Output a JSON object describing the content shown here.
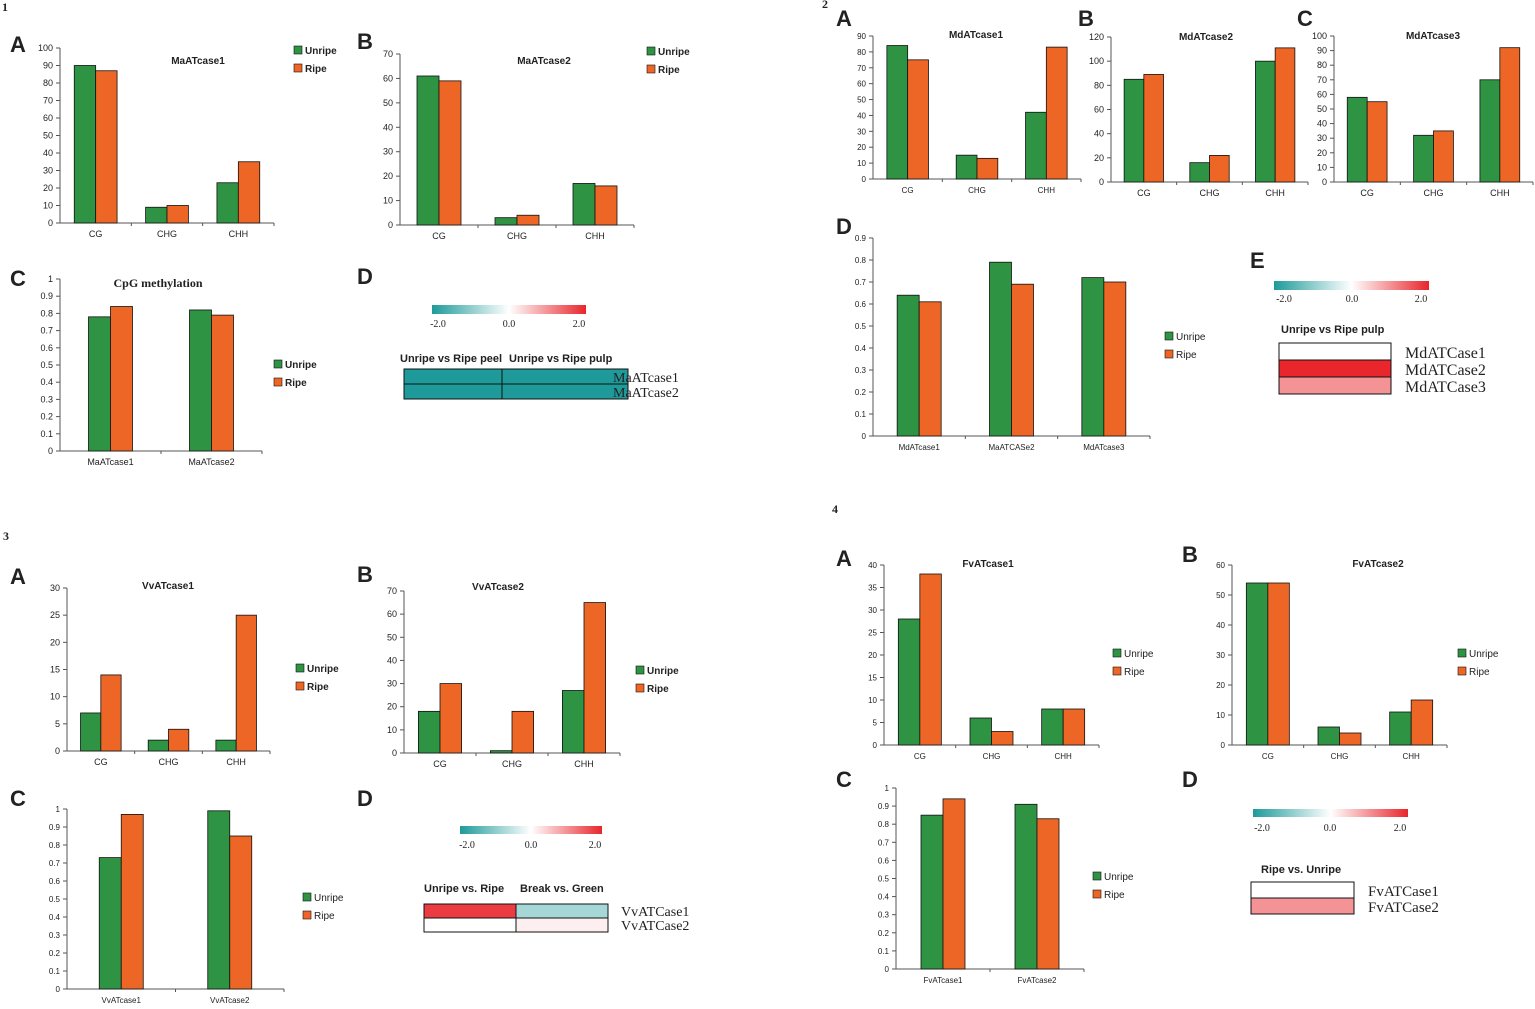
{
  "colors": {
    "unripe": "#2e9444",
    "ripe": "#ee6625",
    "teal": "#1e9a9a",
    "red": "#e8262c",
    "light_red": "#ef8486",
    "light_teal": "#a6dcdc",
    "pale": "#fdf0ec"
  },
  "series_names": [
    "Unripe",
    "Ripe"
  ],
  "figures": [
    {
      "number": "1",
      "panels": [
        {
          "label": "A",
          "chart": "c1A"
        },
        {
          "label": "B",
          "chart": "c1B"
        },
        {
          "label": "C",
          "chart": "c1C"
        },
        {
          "label": "D",
          "heatmap": "h1D"
        }
      ]
    },
    {
      "number": "2",
      "panels": [
        {
          "label": "A",
          "chart": "c2A"
        },
        {
          "label": "B",
          "chart": "c2B"
        },
        {
          "label": "C",
          "chart": "c2C"
        },
        {
          "label": "D",
          "chart": "c2D"
        },
        {
          "label": "E",
          "heatmap": "h2E"
        }
      ]
    },
    {
      "number": "3",
      "panels": [
        {
          "label": "A",
          "chart": "c3A"
        },
        {
          "label": "B",
          "chart": "c3B"
        },
        {
          "label": "C",
          "chart": "c3C"
        },
        {
          "label": "D",
          "heatmap": "h3D"
        }
      ]
    },
    {
      "number": "4",
      "panels": [
        {
          "label": "A",
          "chart": "c4A"
        },
        {
          "label": "B",
          "chart": "c4B"
        },
        {
          "label": "C",
          "chart": "c4C"
        },
        {
          "label": "D",
          "heatmap": "h4D"
        }
      ]
    }
  ],
  "chart_data": [
    {
      "id": "c1A",
      "type": "bar",
      "title": "MaATcase1",
      "categories": [
        "CG",
        "CHG",
        "CHH"
      ],
      "series": [
        {
          "name": "Unripe",
          "values": [
            90,
            9,
            23
          ]
        },
        {
          "name": "Ripe",
          "values": [
            87,
            10,
            35
          ]
        }
      ],
      "ylim": [
        0,
        100
      ],
      "yticks": [
        0,
        10,
        20,
        30,
        40,
        50,
        60,
        70,
        80,
        90,
        100
      ]
    },
    {
      "id": "c1B",
      "type": "bar",
      "title": "MaATcase2",
      "categories": [
        "CG",
        "CHG",
        "CHH"
      ],
      "series": [
        {
          "name": "Unripe",
          "values": [
            61,
            3,
            17
          ]
        },
        {
          "name": "Ripe",
          "values": [
            59,
            4,
            16
          ]
        }
      ],
      "ylim": [
        0,
        70
      ],
      "yticks": [
        0,
        10,
        20,
        30,
        40,
        50,
        60,
        70
      ]
    },
    {
      "id": "c1C",
      "type": "bar",
      "title": "CpG methylation",
      "categories": [
        "MaATcase1",
        "MaATcase2"
      ],
      "series": [
        {
          "name": "Unripe",
          "values": [
            0.78,
            0.82
          ]
        },
        {
          "name": "Ripe",
          "values": [
            0.84,
            0.79
          ]
        }
      ],
      "ylim": [
        0,
        1
      ],
      "yticks": [
        0,
        0.1,
        0.2,
        0.3,
        0.4,
        0.5,
        0.6,
        0.7,
        0.8,
        0.9,
        1
      ]
    },
    {
      "id": "c2A",
      "type": "bar",
      "title": "MdATcase1",
      "categories": [
        "CG",
        "CHG",
        "CHH"
      ],
      "series": [
        {
          "name": "Unripe",
          "values": [
            84,
            15,
            42
          ]
        },
        {
          "name": "Ripe",
          "values": [
            75,
            13,
            83
          ]
        }
      ],
      "ylim": [
        0,
        90
      ],
      "yticks": [
        0,
        10,
        20,
        30,
        40,
        50,
        60,
        70,
        80,
        90
      ]
    },
    {
      "id": "c2B",
      "type": "bar",
      "title": "MdATcase2",
      "categories": [
        "CG",
        "CHG",
        "CHH"
      ],
      "series": [
        {
          "name": "Unripe",
          "values": [
            85,
            16,
            100
          ]
        },
        {
          "name": "Ripe",
          "values": [
            89,
            22,
            111
          ]
        }
      ],
      "ylim": [
        0,
        120
      ],
      "yticks": [
        0,
        20,
        40,
        60,
        80,
        100,
        120
      ]
    },
    {
      "id": "c2C",
      "type": "bar",
      "title": "MdATcase3",
      "categories": [
        "CG",
        "CHG",
        "CHH"
      ],
      "series": [
        {
          "name": "Unripe",
          "values": [
            58,
            32,
            70
          ]
        },
        {
          "name": "Ripe",
          "values": [
            55,
            35,
            92
          ]
        }
      ],
      "ylim": [
        0,
        100
      ],
      "yticks": [
        0,
        10,
        20,
        30,
        40,
        50,
        60,
        70,
        80,
        90,
        100
      ]
    },
    {
      "id": "c2D",
      "type": "bar",
      "title": "",
      "categories": [
        "MdATcase1",
        "MaATCASe2",
        "MdATcase3"
      ],
      "series": [
        {
          "name": "Unripe",
          "values": [
            0.64,
            0.79,
            0.72
          ]
        },
        {
          "name": "Ripe",
          "values": [
            0.61,
            0.69,
            0.7
          ]
        }
      ],
      "ylim": [
        0,
        0.9
      ],
      "yticks": [
        0,
        0.1,
        0.2,
        0.3,
        0.4,
        0.5,
        0.6,
        0.7,
        0.8,
        0.9
      ]
    },
    {
      "id": "c3A",
      "type": "bar",
      "title": "VvATcase1",
      "categories": [
        "CG",
        "CHG",
        "CHH"
      ],
      "series": [
        {
          "name": "Unripe",
          "values": [
            7,
            2,
            2
          ]
        },
        {
          "name": "Ripe",
          "values": [
            14,
            4,
            25
          ]
        }
      ],
      "ylim": [
        0,
        30
      ],
      "yticks": [
        0,
        5,
        10,
        15,
        20,
        25,
        30
      ]
    },
    {
      "id": "c3B",
      "type": "bar",
      "title": "VvATcase2",
      "categories": [
        "CG",
        "CHG",
        "CHH"
      ],
      "series": [
        {
          "name": "Unripe",
          "values": [
            18,
            1,
            27
          ]
        },
        {
          "name": "Ripe",
          "values": [
            30,
            18,
            65
          ]
        }
      ],
      "ylim": [
        0,
        70
      ],
      "yticks": [
        0,
        10,
        20,
        30,
        40,
        50,
        60,
        70
      ]
    },
    {
      "id": "c3C",
      "type": "bar",
      "title": "",
      "categories": [
        "VvATcase1",
        "VvATcase2"
      ],
      "series": [
        {
          "name": "Unripe",
          "values": [
            0.73,
            0.99
          ]
        },
        {
          "name": "Ripe",
          "values": [
            0.97,
            0.85
          ]
        }
      ],
      "ylim": [
        0,
        1
      ],
      "yticks": [
        0,
        0.1,
        0.2,
        0.3,
        0.4,
        0.5,
        0.6,
        0.7,
        0.8,
        0.9,
        1
      ]
    },
    {
      "id": "c4A",
      "type": "bar",
      "title": "FvATcase1",
      "categories": [
        "CG",
        "CHG",
        "CHH"
      ],
      "series": [
        {
          "name": "Unripe",
          "values": [
            28,
            6,
            8
          ]
        },
        {
          "name": "Ripe",
          "values": [
            38,
            3,
            8
          ]
        }
      ],
      "ylim": [
        0,
        40
      ],
      "yticks": [
        0,
        5,
        10,
        15,
        20,
        25,
        30,
        35,
        40
      ]
    },
    {
      "id": "c4B",
      "type": "bar",
      "title": "FvATcase2",
      "categories": [
        "CG",
        "CHG",
        "CHH"
      ],
      "series": [
        {
          "name": "Unripe",
          "values": [
            54,
            6,
            11
          ]
        },
        {
          "name": "Ripe",
          "values": [
            54,
            4,
            15
          ]
        }
      ],
      "ylim": [
        0,
        60
      ],
      "yticks": [
        0,
        10,
        20,
        30,
        40,
        50,
        60
      ]
    },
    {
      "id": "c4C",
      "type": "bar",
      "title": "",
      "categories": [
        "FvATcase1",
        "FvATcase2"
      ],
      "series": [
        {
          "name": "Unripe",
          "values": [
            0.85,
            0.91
          ]
        },
        {
          "name": "Ripe",
          "values": [
            0.94,
            0.83
          ]
        }
      ],
      "ylim": [
        0,
        1
      ],
      "yticks": [
        0,
        0.1,
        0.2,
        0.3,
        0.4,
        0.5,
        0.6,
        0.7,
        0.8,
        0.9,
        1
      ]
    },
    {
      "id": "h1D",
      "type": "heatmap",
      "scale_labels": [
        "-2.0",
        "0.0",
        "2.0"
      ],
      "columns": [
        "Unripe vs Ripe peel",
        "Unripe vs Ripe pulp"
      ],
      "rows": [
        "MaATcase1",
        "MaATcase2"
      ],
      "values": [
        [
          -2,
          -2
        ],
        [
          -2,
          -2
        ]
      ]
    },
    {
      "id": "h2E",
      "type": "heatmap",
      "scale_labels": [
        "-2.0",
        "0.0",
        "2.0"
      ],
      "columns": [
        "Unripe vs Ripe pulp"
      ],
      "rows": [
        "MdATCase1",
        "MdATCase2",
        "MdATCase3"
      ],
      "values": [
        [
          0
        ],
        [
          2
        ],
        [
          1
        ]
      ]
    },
    {
      "id": "h3D",
      "type": "heatmap",
      "scale_labels": [
        "-2.0",
        "0.0",
        "2.0"
      ],
      "columns": [
        "Unripe vs. Ripe",
        "Break vs. Green"
      ],
      "rows": [
        "VvATCase1",
        "VvATCase2"
      ],
      "values": [
        [
          1.8,
          -0.8
        ],
        [
          0,
          0.15
        ]
      ]
    },
    {
      "id": "h4D",
      "type": "heatmap",
      "scale_labels": [
        "-2.0",
        "0.0",
        "2.0"
      ],
      "columns": [
        "Ripe vs. Unripe"
      ],
      "rows": [
        "FvATCase1",
        "FvATCase2"
      ],
      "values": [
        [
          0
        ],
        [
          1
        ]
      ]
    }
  ]
}
